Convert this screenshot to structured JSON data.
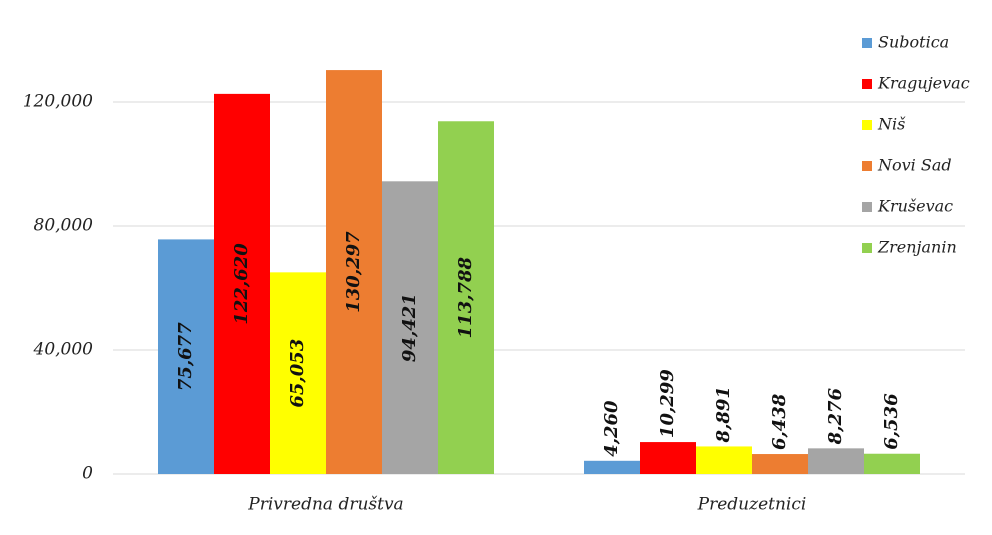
{
  "chart_data": {
    "type": "bar",
    "categories": [
      "Privredna društva",
      "Preduzetnici"
    ],
    "series": [
      {
        "name": "Subotica",
        "color": "#5b9bd5",
        "values": [
          75677,
          4260
        ],
        "value_labels": [
          "75,677",
          "4,260"
        ]
      },
      {
        "name": "Kragujevac",
        "color": "#ff0000",
        "values": [
          122620,
          10299
        ],
        "value_labels": [
          "122,620",
          "10,299"
        ]
      },
      {
        "name": "Niš",
        "color": "#ffff00",
        "values": [
          65053,
          8891
        ],
        "value_labels": [
          "65,053",
          "8,891"
        ]
      },
      {
        "name": "Novi Sad",
        "color": "#ed7d31",
        "values": [
          130297,
          6438
        ],
        "value_labels": [
          "130,297",
          "6,438"
        ]
      },
      {
        "name": "Kruševac",
        "color": "#a5a5a5",
        "values": [
          94421,
          8276
        ],
        "value_labels": [
          "94,421",
          "8,276"
        ]
      },
      {
        "name": "Zrenjanin",
        "color": "#92d050",
        "values": [
          113788,
          6536
        ],
        "value_labels": [
          "113,788",
          "6,536"
        ]
      }
    ],
    "ylim": [
      0,
      140000
    ],
    "yticks": [
      0,
      {
        "value": 40000,
        "label": "40,000"
      },
      {
        "value": 80000,
        "label": "80,000"
      },
      {
        "value": 120000,
        "label": "120,000"
      }
    ],
    "grid": true,
    "legend": "right"
  }
}
